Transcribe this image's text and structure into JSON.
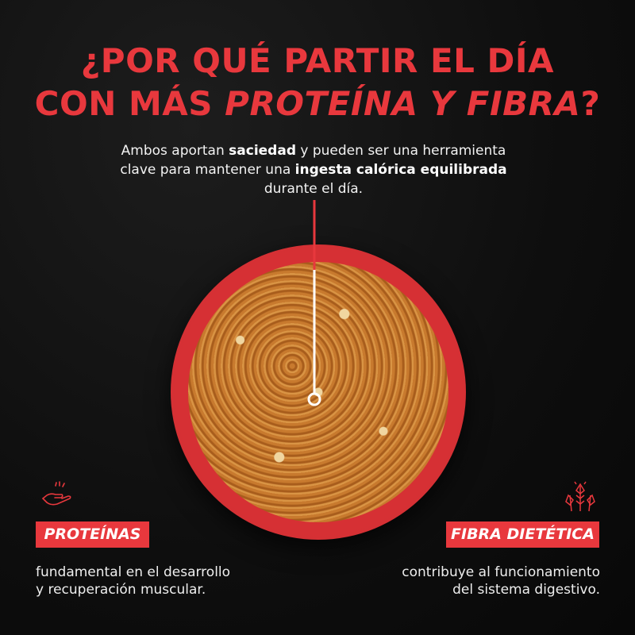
{
  "title": {
    "line1": "¿POR QUÉ PARTIR EL DÍA",
    "line2_prefix": "CON MÁS ",
    "line2_emphasis": "PROTEÍNA Y FIBRA",
    "line2_suffix": "?"
  },
  "intro": {
    "part1": "Ambos aportan ",
    "bold1": "saciedad",
    "part2": " y pueden ser una herramienta clave para mantener una ",
    "bold2": "ingesta calórica  equilibrada",
    "part3": " durante el día."
  },
  "left": {
    "icon": "hand-icon",
    "badge": "PROTEÍNAS",
    "line1": "fundamental en el desarrollo",
    "line2": "y  recuperación muscular."
  },
  "right": {
    "icon": "wheat-icon",
    "badge": "FIBRA DIETÉTICA",
    "line1": "contribuye al funcionamiento",
    "line2": "del sistema digestivo."
  },
  "colors": {
    "accent": "#e8383d",
    "background": "#111111",
    "text": "#f2f2f2"
  }
}
